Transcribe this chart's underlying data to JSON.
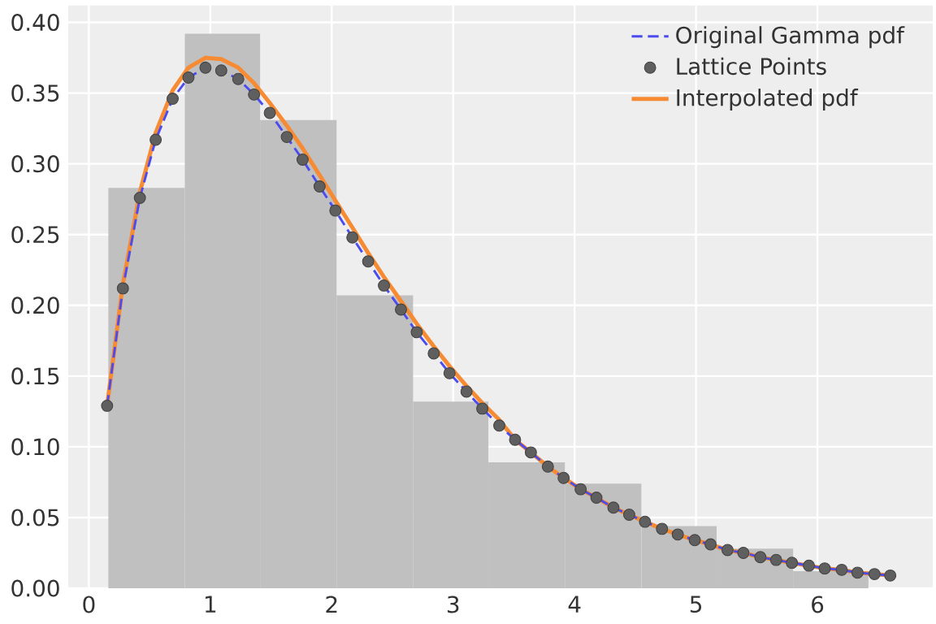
{
  "chart_data": {
    "type": "histogram",
    "bins": [
      0.16,
      0.79,
      1.41,
      2.04,
      2.67,
      3.29,
      3.92,
      4.55,
      5.17,
      5.8,
      6.42
    ],
    "values": [
      0.283,
      0.392,
      0.331,
      0.207,
      0.132,
      0.089,
      0.074,
      0.044,
      0.028,
      0.012
    ],
    "color": "#c0c0c0",
    "series": [
      {
        "name": "Original Gamma pdf",
        "type": "line",
        "color": "#4b4bef",
        "line_style": "dashed",
        "x": [
          0.15,
          0.28,
          0.42,
          0.55,
          0.69,
          0.82,
          0.96,
          1.09,
          1.23,
          1.36,
          1.49,
          1.63,
          1.76,
          1.9,
          2.03,
          2.17,
          2.3,
          2.43,
          2.57,
          2.7,
          2.84,
          2.97,
          3.11,
          3.24,
          3.38,
          3.51,
          3.64,
          3.78,
          3.91,
          4.05,
          4.18,
          4.32,
          4.45,
          4.58,
          4.72,
          4.85,
          4.99,
          5.12,
          5.26,
          5.39,
          5.53,
          5.66,
          5.79,
          5.93,
          6.06,
          6.2,
          6.33,
          6.47,
          6.6
        ],
        "values": [
          0.129,
          0.212,
          0.276,
          0.317,
          0.346,
          0.361,
          0.368,
          0.366,
          0.36,
          0.349,
          0.336,
          0.319,
          0.303,
          0.284,
          0.267,
          0.248,
          0.231,
          0.214,
          0.197,
          0.181,
          0.166,
          0.152,
          0.139,
          0.127,
          0.115,
          0.105,
          0.096,
          0.086,
          0.078,
          0.07,
          0.064,
          0.057,
          0.052,
          0.047,
          0.042,
          0.038,
          0.034,
          0.031,
          0.027,
          0.025,
          0.022,
          0.02,
          0.018,
          0.016,
          0.014,
          0.013,
          0.011,
          0.01,
          0.009
        ]
      },
      {
        "name": "Lattice Points",
        "type": "scatter",
        "color": "#5f5f5f",
        "x": [
          0.15,
          0.28,
          0.42,
          0.55,
          0.69,
          0.82,
          0.96,
          1.09,
          1.23,
          1.36,
          1.49,
          1.63,
          1.76,
          1.9,
          2.03,
          2.17,
          2.3,
          2.43,
          2.57,
          2.7,
          2.84,
          2.97,
          3.11,
          3.24,
          3.38,
          3.51,
          3.64,
          3.78,
          3.91,
          4.05,
          4.18,
          4.32,
          4.45,
          4.58,
          4.72,
          4.85,
          4.99,
          5.12,
          5.26,
          5.39,
          5.53,
          5.66,
          5.79,
          5.93,
          6.06,
          6.2,
          6.33,
          6.47,
          6.6
        ],
        "values": [
          0.129,
          0.212,
          0.276,
          0.317,
          0.346,
          0.361,
          0.368,
          0.366,
          0.36,
          0.349,
          0.336,
          0.319,
          0.303,
          0.284,
          0.267,
          0.248,
          0.231,
          0.214,
          0.197,
          0.181,
          0.166,
          0.152,
          0.139,
          0.127,
          0.115,
          0.105,
          0.096,
          0.086,
          0.078,
          0.07,
          0.064,
          0.057,
          0.052,
          0.047,
          0.042,
          0.038,
          0.034,
          0.031,
          0.027,
          0.025,
          0.022,
          0.02,
          0.018,
          0.016,
          0.014,
          0.013,
          0.011,
          0.01,
          0.009
        ]
      },
      {
        "name": "Interpolated pdf",
        "type": "line",
        "color": "#f68b33",
        "line_style": "solid",
        "x": [
          0.15,
          0.28,
          0.42,
          0.55,
          0.69,
          0.82,
          0.96,
          1.09,
          1.23,
          1.36,
          1.49,
          1.63,
          1.76,
          1.9,
          2.03,
          2.17,
          2.3,
          2.43,
          2.57,
          2.7,
          2.84,
          2.97,
          3.11,
          3.24,
          3.38,
          3.51,
          3.64,
          3.78,
          3.91,
          4.05,
          4.18,
          4.32,
          4.45,
          4.58,
          4.72,
          4.85,
          4.99,
          5.12,
          5.26,
          5.39,
          5.53,
          5.66,
          5.79,
          5.93,
          6.06,
          6.2,
          6.33,
          6.47,
          6.6
        ],
        "values": [
          0.129,
          0.215,
          0.28,
          0.322,
          0.352,
          0.368,
          0.375,
          0.374,
          0.368,
          0.357,
          0.343,
          0.327,
          0.311,
          0.292,
          0.274,
          0.255,
          0.237,
          0.22,
          0.203,
          0.187,
          0.171,
          0.157,
          0.143,
          0.131,
          0.119,
          0.105,
          0.096,
          0.086,
          0.078,
          0.07,
          0.064,
          0.057,
          0.052,
          0.047,
          0.042,
          0.038,
          0.034,
          0.031,
          0.027,
          0.025,
          0.022,
          0.02,
          0.018,
          0.016,
          0.014,
          0.013,
          0.011,
          0.01,
          0.009
        ]
      }
    ],
    "xlim": [
      -0.17,
      6.95
    ],
    "ylim": [
      0,
      0.412
    ],
    "xticks": [
      0,
      1,
      2,
      3,
      4,
      5,
      6
    ],
    "yticks": [
      {
        "value": 0,
        "label": "0.00"
      },
      {
        "value": 0.05,
        "label": "0.05"
      },
      {
        "value": 0.1,
        "label": "0.10"
      },
      {
        "value": 0.15,
        "label": "0.15"
      },
      {
        "value": 0.2,
        "label": "0.20"
      },
      {
        "value": 0.25,
        "label": "0.25"
      },
      {
        "value": 0.3,
        "label": "0.30"
      },
      {
        "value": 0.35,
        "label": "0.35"
      },
      {
        "value": 0.4,
        "label": "0.40"
      }
    ],
    "grid": true,
    "legend": "top right"
  }
}
